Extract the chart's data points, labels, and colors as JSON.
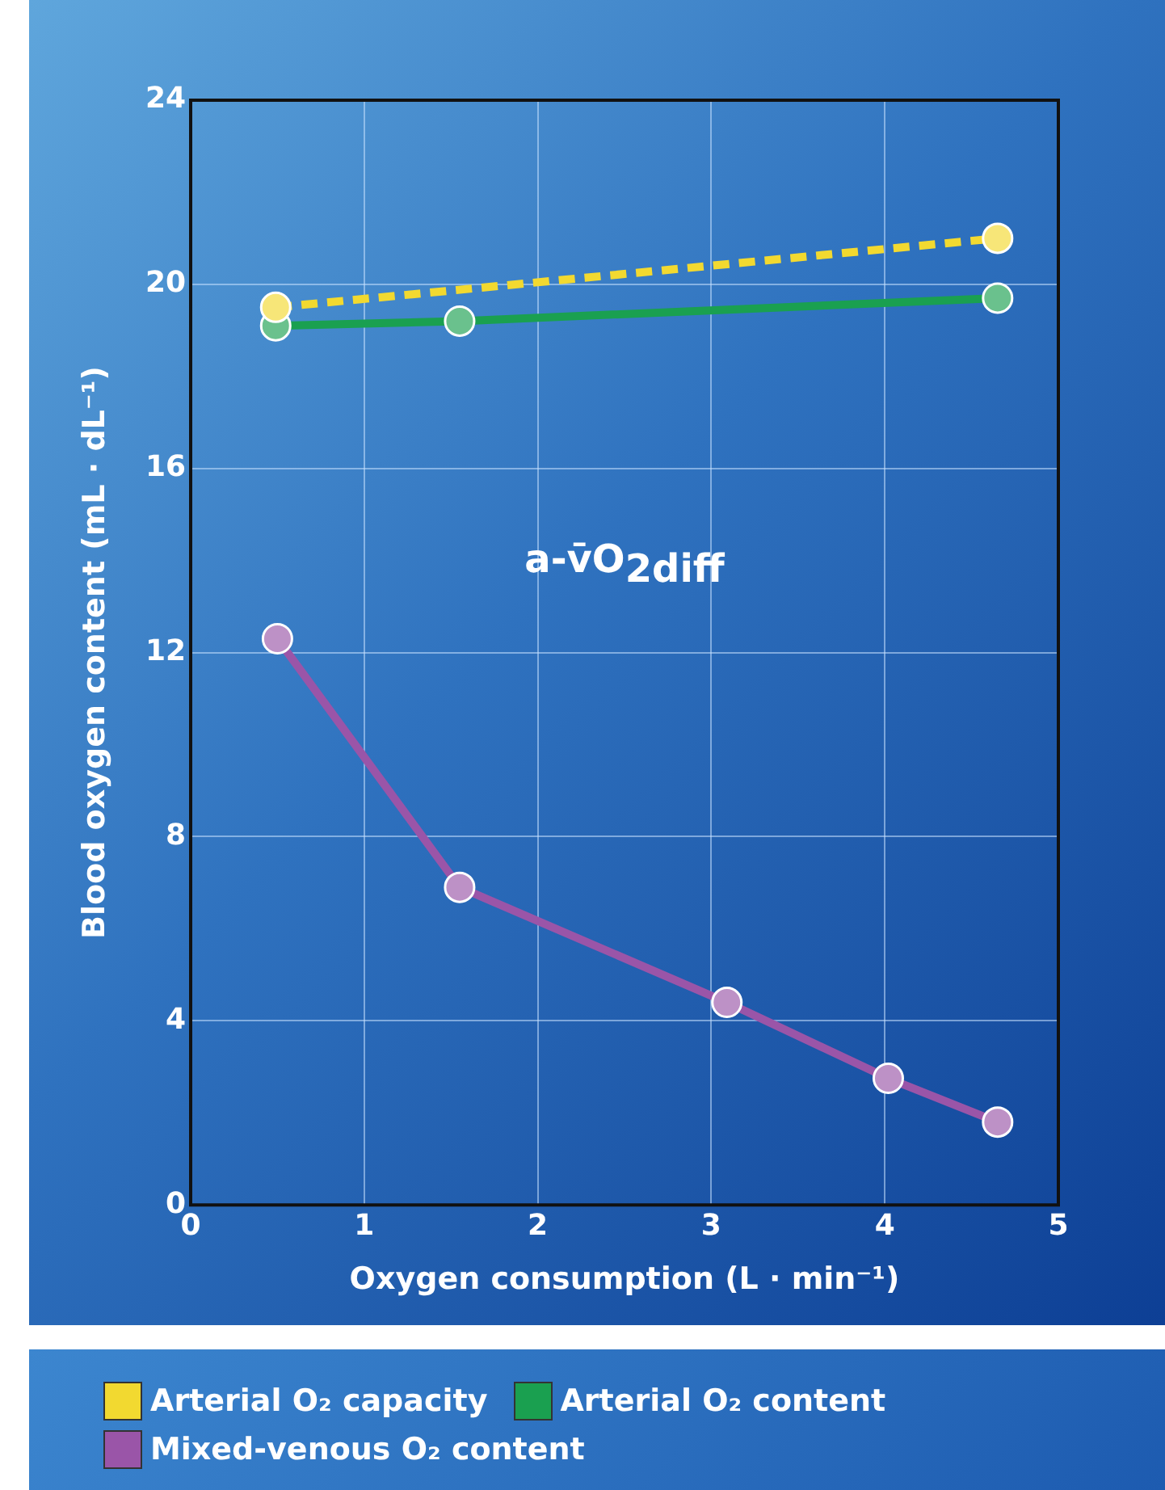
{
  "chart_data": {
    "type": "line",
    "xlabel": "Oxygen consumption (L · min⁻¹)",
    "ylabel": "Blood oxygen content (mL · dL⁻¹)",
    "xlim": [
      0,
      5
    ],
    "xticks": [
      0,
      1,
      2,
      3,
      4,
      5
    ],
    "ylim": [
      0,
      24
    ],
    "yticks": [
      0,
      4,
      8,
      12,
      16,
      20,
      24
    ],
    "grid": true,
    "legend": "bottom left",
    "marker": "circle",
    "annotations": [
      "a-v̄O$_{2diff}$"
    ],
    "series": [
      {
        "name": "Arterial O₂ capacity",
        "color": "#f2d930",
        "x": [
          0.49,
          4.65
        ],
        "values": [
          19.5,
          21.0
        ],
        "line_style": "dashed"
      },
      {
        "name": "Arterial O₂ content",
        "color": "#1aa050",
        "x": [
          0.49,
          1.55,
          4.65
        ],
        "values": [
          19.1,
          19.2,
          19.7
        ],
        "line_style": "solid"
      },
      {
        "name": "Mixed-venous O₂ content",
        "color": "#9a55a8",
        "x": [
          0.5,
          1.55,
          3.09,
          4.02,
          4.65
        ],
        "values": [
          12.3,
          6.9,
          4.4,
          2.75,
          1.8
        ],
        "line_style": "solid"
      }
    ]
  }
}
